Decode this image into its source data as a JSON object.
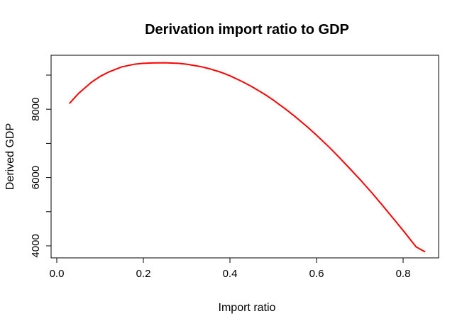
{
  "chart_data": {
    "type": "line",
    "title": "Derivation import ratio to GDP",
    "xlabel": "Import ratio",
    "ylabel": "Derived GDP",
    "xlim": [
      0.0,
      0.85
    ],
    "ylim": [
      3760,
      9580
    ],
    "x_ticks": [
      0.0,
      0.2,
      0.4,
      0.6,
      0.8
    ],
    "x_tick_labels": [
      "0.0",
      "0.2",
      "0.4",
      "0.6",
      "0.8"
    ],
    "y_ticks": [
      4000,
      5000,
      6000,
      7000,
      8000,
      9000
    ],
    "y_tick_labels": [
      "4000",
      "",
      "6000",
      "",
      "8000",
      ""
    ],
    "grid": false,
    "legend": "none",
    "series": [
      {
        "color": "#ff0000",
        "x": [
          0.03,
          0.05,
          0.08,
          0.1,
          0.12,
          0.15,
          0.18,
          0.2,
          0.22,
          0.25,
          0.28,
          0.3,
          0.33,
          0.35,
          0.38,
          0.4,
          0.43,
          0.45,
          0.48,
          0.5,
          0.53,
          0.55,
          0.58,
          0.6,
          0.63,
          0.65,
          0.68,
          0.7,
          0.73,
          0.75,
          0.78,
          0.8,
          0.83,
          0.85
        ],
        "y": [
          8180,
          8460,
          8790,
          8960,
          9090,
          9240,
          9320,
          9345,
          9355,
          9360,
          9345,
          9320,
          9255,
          9195,
          9080,
          8980,
          8800,
          8665,
          8440,
          8270,
          7990,
          7790,
          7470,
          7240,
          6880,
          6620,
          6220,
          5950,
          5520,
          5220,
          4760,
          4450,
          3970,
          3830
        ]
      }
    ]
  }
}
